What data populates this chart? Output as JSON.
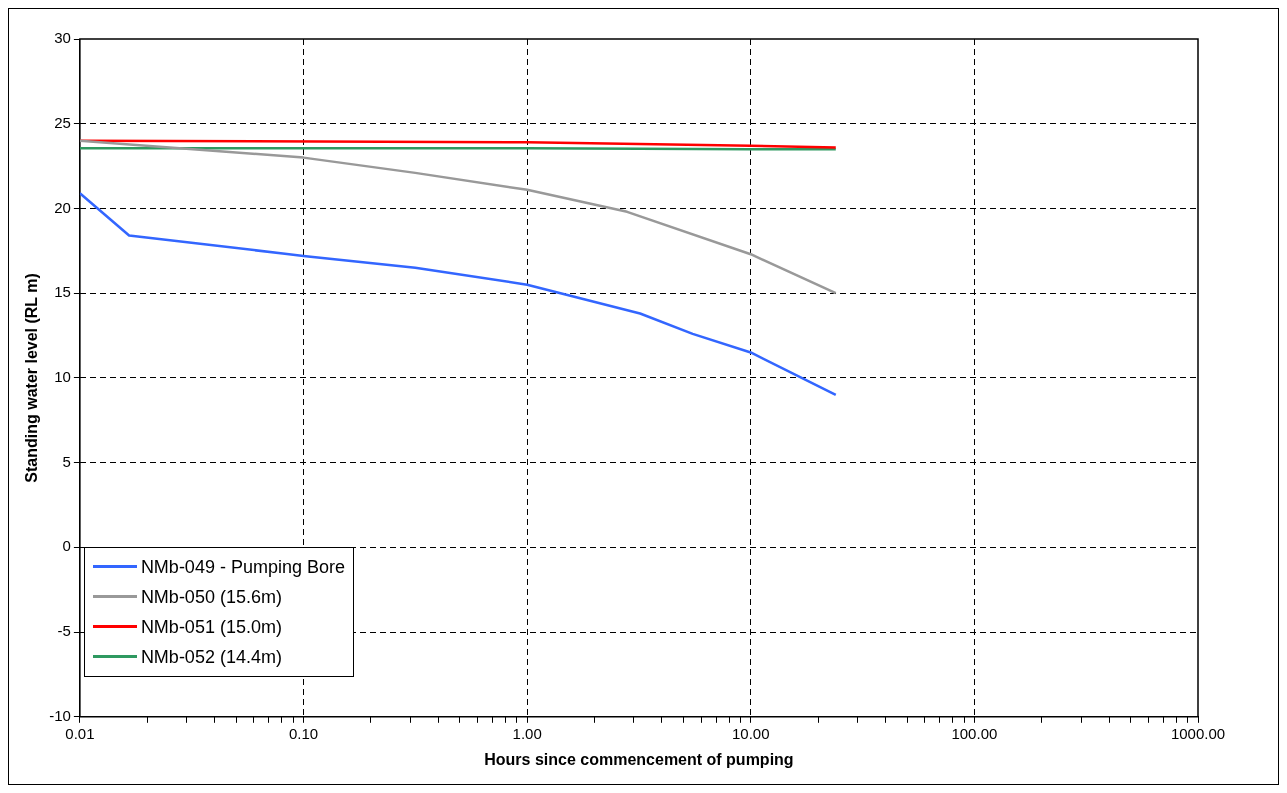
{
  "chart_data": {
    "type": "line",
    "xlabel": "Hours since commencement of pumping",
    "ylabel": "Standing water level (RL m)",
    "log": "x",
    "grid": true,
    "line_style": "solid",
    "marker": "none",
    "legend": "bottom left",
    "xlim": [
      0.01,
      1000
    ],
    "ylim": [
      -10,
      30
    ],
    "xticks": [
      {
        "value": 0.01,
        "label": "0.01"
      },
      {
        "value": 0.1,
        "label": "0.10"
      },
      {
        "value": 1,
        "label": "1.00"
      },
      {
        "value": 10,
        "label": "10.00"
      },
      {
        "value": 100,
        "label": "100.00"
      },
      {
        "value": 1000,
        "label": "1000.00"
      }
    ],
    "yticks": [
      -10,
      -5,
      0,
      5,
      10,
      15,
      20,
      25,
      30
    ],
    "series": [
      {
        "name": "NMb-049 - Pumping Bore",
        "color": "#3366ff",
        "x": [
          0.01,
          0.0166,
          0.1,
          0.316,
          1,
          3.2,
          5.5,
          10,
          24
        ],
        "values": [
          20.9,
          18.4,
          17.2,
          16.5,
          15.5,
          13.8,
          12.6,
          11.5,
          9.0
        ]
      },
      {
        "name": "NMb-050 (15.6m)",
        "color": "#999999",
        "x": [
          0.01,
          0.1,
          0.316,
          1,
          2.8,
          10,
          24
        ],
        "values": [
          24.0,
          23.0,
          22.1,
          21.1,
          19.8,
          17.3,
          15.0
        ]
      },
      {
        "name": "NMb-051 (15.0m)",
        "color": "#ff0000",
        "x": [
          0.01,
          1,
          10,
          24
        ],
        "values": [
          24.0,
          23.9,
          23.7,
          23.6
        ]
      },
      {
        "name": "NMb-052 (14.4m)",
        "color": "#2e9960",
        "x": [
          0.01,
          1,
          10,
          24
        ],
        "values": [
          23.55,
          23.55,
          23.5,
          23.5
        ]
      }
    ]
  }
}
